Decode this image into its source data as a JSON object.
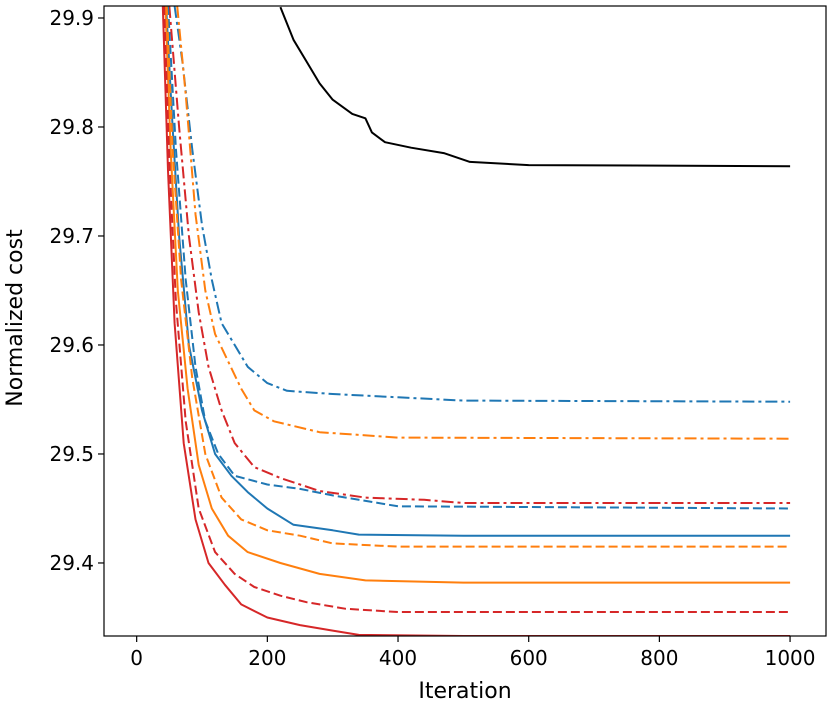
{
  "chart_data": {
    "type": "line",
    "title": "",
    "xlabel": "Iteration",
    "ylabel": "Normalized cost",
    "xlim": [
      -50,
      1055
    ],
    "ylim": [
      29.333,
      29.911
    ],
    "xticks": [
      0,
      200,
      400,
      600,
      800,
      1000
    ],
    "yticks": [
      29.4,
      29.5,
      29.6,
      29.7,
      29.8,
      29.9
    ],
    "xtick_labels": [
      "0",
      "200",
      "400",
      "600",
      "800",
      "1000"
    ],
    "ytick_labels": [
      "29.4",
      "29.5",
      "29.6",
      "29.7",
      "29.8",
      "29.9"
    ],
    "grid": false,
    "legend": "none",
    "series": [
      {
        "color": "#000000",
        "dash": "solid",
        "points": [
          [
            220,
            29.91
          ],
          [
            240,
            29.88
          ],
          [
            260,
            29.86
          ],
          [
            280,
            29.84
          ],
          [
            300,
            29.825
          ],
          [
            330,
            29.812
          ],
          [
            350,
            29.808
          ],
          [
            360,
            29.795
          ],
          [
            380,
            29.786
          ],
          [
            420,
            29.781
          ],
          [
            470,
            29.776
          ],
          [
            510,
            29.768
          ],
          [
            600,
            29.765
          ],
          [
            1000,
            29.764
          ]
        ]
      },
      {
        "color": "#1f77b4",
        "dash": "dashdot",
        "points": [
          [
            58,
            29.911
          ],
          [
            70,
            29.86
          ],
          [
            85,
            29.78
          ],
          [
            100,
            29.71
          ],
          [
            115,
            29.66
          ],
          [
            130,
            29.62
          ],
          [
            150,
            29.6
          ],
          [
            170,
            29.58
          ],
          [
            200,
            29.565
          ],
          [
            230,
            29.558
          ],
          [
            300,
            29.555
          ],
          [
            400,
            29.552
          ],
          [
            500,
            29.549
          ],
          [
            1000,
            29.548
          ]
        ]
      },
      {
        "color": "#ff7f0e",
        "dash": "dashdot",
        "points": [
          [
            62,
            29.911
          ],
          [
            75,
            29.83
          ],
          [
            90,
            29.72
          ],
          [
            105,
            29.65
          ],
          [
            120,
            29.61
          ],
          [
            140,
            29.585
          ],
          [
            160,
            29.56
          ],
          [
            180,
            29.54
          ],
          [
            210,
            29.53
          ],
          [
            280,
            29.52
          ],
          [
            400,
            29.515
          ],
          [
            1000,
            29.514
          ]
        ]
      },
      {
        "color": "#d62728",
        "dash": "dashdot",
        "points": [
          [
            50,
            29.911
          ],
          [
            65,
            29.8
          ],
          [
            80,
            29.7
          ],
          [
            95,
            29.63
          ],
          [
            110,
            29.58
          ],
          [
            130,
            29.54
          ],
          [
            150,
            29.51
          ],
          [
            180,
            29.488
          ],
          [
            220,
            29.478
          ],
          [
            280,
            29.466
          ],
          [
            350,
            29.46
          ],
          [
            440,
            29.458
          ],
          [
            500,
            29.455
          ],
          [
            1000,
            29.455
          ]
        ]
      },
      {
        "color": "#1f77b4",
        "dash": "dashed",
        "points": [
          [
            48,
            29.911
          ],
          [
            60,
            29.78
          ],
          [
            75,
            29.66
          ],
          [
            90,
            29.58
          ],
          [
            105,
            29.53
          ],
          [
            125,
            29.5
          ],
          [
            150,
            29.48
          ],
          [
            200,
            29.472
          ],
          [
            250,
            29.468
          ],
          [
            300,
            29.462
          ],
          [
            400,
            29.452
          ],
          [
            1000,
            29.45
          ]
        ]
      },
      {
        "color": "#1f77b4",
        "dash": "solid",
        "points": [
          [
            45,
            29.911
          ],
          [
            55,
            29.8
          ],
          [
            65,
            29.7
          ],
          [
            80,
            29.6
          ],
          [
            100,
            29.54
          ],
          [
            120,
            29.5
          ],
          [
            145,
            29.48
          ],
          [
            170,
            29.465
          ],
          [
            200,
            29.45
          ],
          [
            240,
            29.435
          ],
          [
            300,
            29.43
          ],
          [
            340,
            29.426
          ],
          [
            500,
            29.425
          ],
          [
            1000,
            29.425
          ]
        ]
      },
      {
        "color": "#ff7f0e",
        "dash": "dashed",
        "points": [
          [
            46,
            29.911
          ],
          [
            55,
            29.78
          ],
          [
            68,
            29.66
          ],
          [
            85,
            29.57
          ],
          [
            105,
            29.5
          ],
          [
            130,
            29.46
          ],
          [
            160,
            29.44
          ],
          [
            200,
            29.43
          ],
          [
            250,
            29.425
          ],
          [
            300,
            29.418
          ],
          [
            400,
            29.415
          ],
          [
            1000,
            29.415
          ]
        ]
      },
      {
        "color": "#ff7f0e",
        "dash": "solid",
        "points": [
          [
            44,
            29.911
          ],
          [
            52,
            29.78
          ],
          [
            63,
            29.65
          ],
          [
            78,
            29.56
          ],
          [
            95,
            29.49
          ],
          [
            115,
            29.45
          ],
          [
            140,
            29.425
          ],
          [
            170,
            29.41
          ],
          [
            220,
            29.4
          ],
          [
            280,
            29.39
          ],
          [
            350,
            29.384
          ],
          [
            500,
            29.382
          ],
          [
            1000,
            29.382
          ]
        ]
      },
      {
        "color": "#d62728",
        "dash": "dashed",
        "points": [
          [
            42,
            29.911
          ],
          [
            50,
            29.77
          ],
          [
            60,
            29.64
          ],
          [
            75,
            29.53
          ],
          [
            95,
            29.45
          ],
          [
            120,
            29.41
          ],
          [
            150,
            29.39
          ],
          [
            180,
            29.378
          ],
          [
            220,
            29.37
          ],
          [
            260,
            29.364
          ],
          [
            320,
            29.358
          ],
          [
            400,
            29.355
          ],
          [
            1000,
            29.355
          ]
        ]
      },
      {
        "color": "#d62728",
        "dash": "solid",
        "points": [
          [
            40,
            29.911
          ],
          [
            48,
            29.76
          ],
          [
            58,
            29.62
          ],
          [
            72,
            29.51
          ],
          [
            90,
            29.44
          ],
          [
            110,
            29.4
          ],
          [
            135,
            29.38
          ],
          [
            160,
            29.362
          ],
          [
            200,
            29.35
          ],
          [
            250,
            29.343
          ],
          [
            300,
            29.338
          ],
          [
            340,
            29.334
          ],
          [
            500,
            29.333
          ],
          [
            1000,
            29.333
          ]
        ]
      }
    ]
  }
}
